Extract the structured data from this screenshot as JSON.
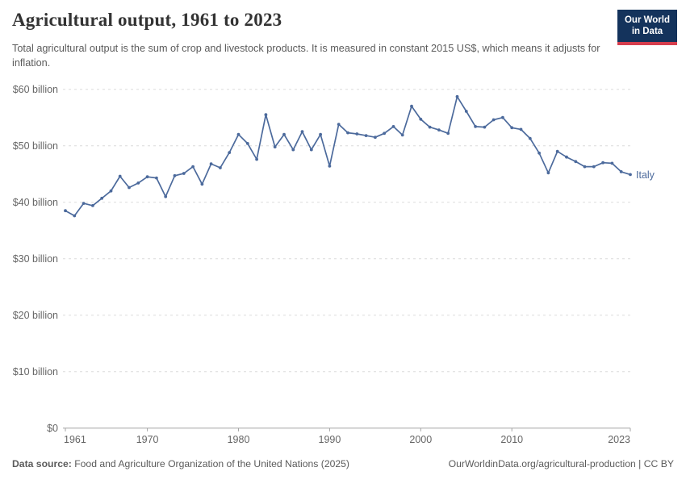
{
  "header": {
    "title": "Agricultural output, 1961 to 2023",
    "subtitle": "Total agricultural output is the sum of crop and livestock products. It is measured in constant 2015 US$, which means it adjusts for inflation.",
    "logo": {
      "line1": "Our World",
      "line2": "in Data"
    }
  },
  "chart_data": {
    "type": "line",
    "title": "Agricultural output, 1961 to 2023",
    "series_name": "Italy",
    "xlabel": "",
    "ylabel": "",
    "ylim": [
      0,
      60
    ],
    "grid": "dashed-horizontal",
    "legend_position": "end-of-line-label",
    "years": [
      1961,
      1962,
      1963,
      1964,
      1965,
      1966,
      1967,
      1968,
      1969,
      1970,
      1971,
      1972,
      1973,
      1974,
      1975,
      1976,
      1977,
      1978,
      1979,
      1980,
      1981,
      1982,
      1983,
      1984,
      1985,
      1986,
      1987,
      1988,
      1989,
      1990,
      1991,
      1992,
      1993,
      1994,
      1995,
      1996,
      1997,
      1998,
      1999,
      2000,
      2001,
      2002,
      2003,
      2004,
      2005,
      2006,
      2007,
      2008,
      2009,
      2010,
      2011,
      2012,
      2013,
      2014,
      2015,
      2016,
      2017,
      2018,
      2019,
      2020,
      2021,
      2022,
      2023
    ],
    "values": [
      38.5,
      37.6,
      39.8,
      39.4,
      40.7,
      42.0,
      44.6,
      42.6,
      43.4,
      44.5,
      44.3,
      41.0,
      44.7,
      45.1,
      46.3,
      43.2,
      46.8,
      46.1,
      48.8,
      52.0,
      50.4,
      47.6,
      55.5,
      49.8,
      52.0,
      49.3,
      52.5,
      49.3,
      52.0,
      46.4,
      53.8,
      52.3,
      52.1,
      51.8,
      51.5,
      52.2,
      53.4,
      51.9,
      57.0,
      54.7,
      53.3,
      52.8,
      52.2,
      58.7,
      56.1,
      53.4,
      53.3,
      54.6,
      55.0,
      53.2,
      52.9,
      51.3,
      48.7,
      45.2,
      49.0,
      48.0,
      47.2,
      46.3,
      46.3,
      47.0,
      46.9,
      45.4,
      44.9
    ],
    "yticks": [
      {
        "value": 60,
        "label": "$60 billion"
      },
      {
        "value": 50,
        "label": "$50 billion"
      },
      {
        "value": 40,
        "label": "$40 billion"
      },
      {
        "value": 30,
        "label": "$30 billion"
      },
      {
        "value": 20,
        "label": "$20 billion"
      },
      {
        "value": 10,
        "label": "$10 billion"
      },
      {
        "value": 0,
        "label": "$0"
      }
    ],
    "xticks": [
      1961,
      1970,
      1980,
      1990,
      2000,
      2010,
      2023
    ],
    "colors": {
      "line": "#4C6A9C",
      "grid": "#dcdcdc",
      "axis": "#a3a3a3",
      "tick_text": "#666666"
    }
  },
  "footer": {
    "source_label": "Data source:",
    "source_text": " Food and Agriculture Organization of the United Nations (2025)",
    "link_text": "OurWorldinData.org/agricultural-production",
    "separator": " | ",
    "license": "CC BY"
  }
}
